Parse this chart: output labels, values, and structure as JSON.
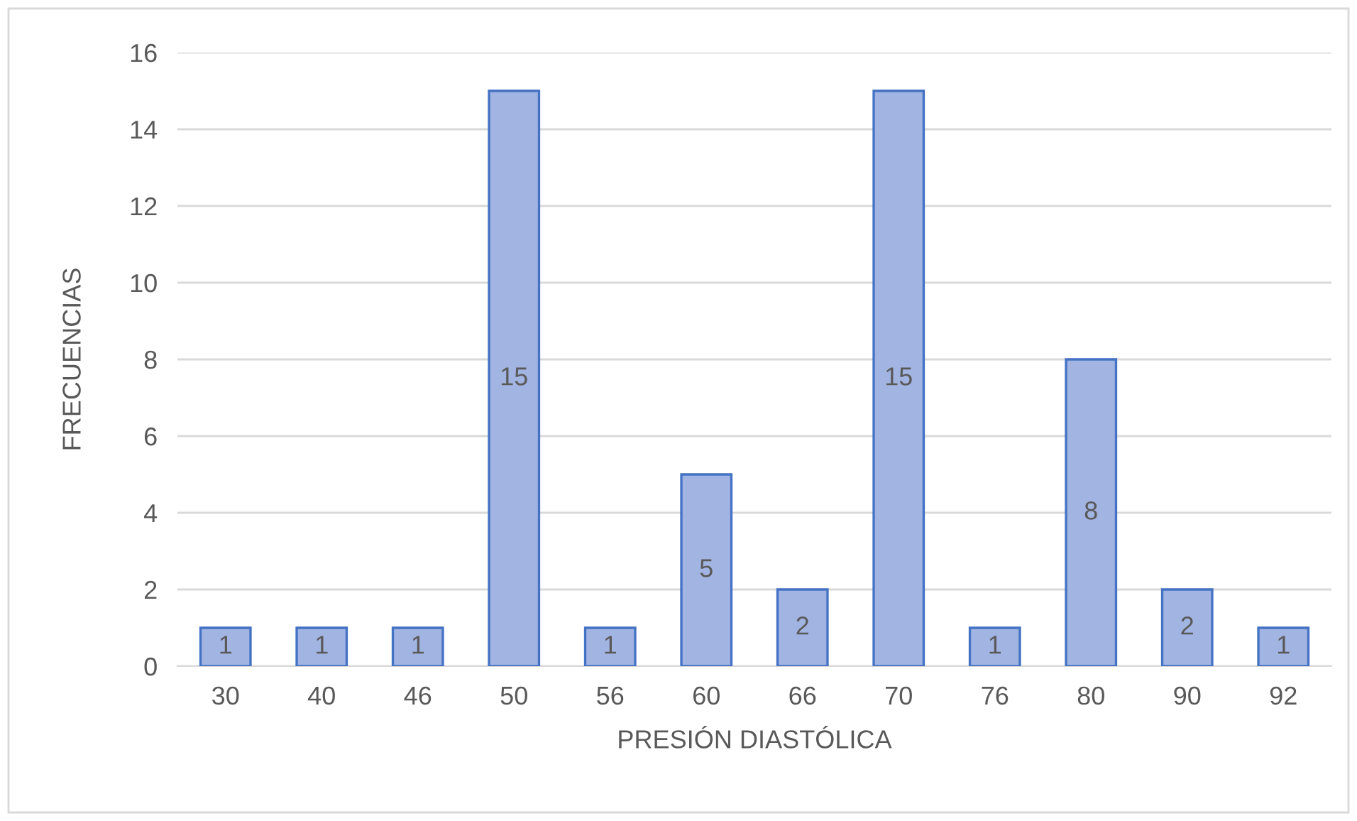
{
  "chart_data": {
    "type": "bar",
    "xlabel": "PRESIÓN DIASTÓLICA",
    "ylabel": "FRECUENCIAS",
    "categories": [
      "30",
      "40",
      "46",
      "50",
      "56",
      "60",
      "66",
      "70",
      "76",
      "80",
      "90",
      "92"
    ],
    "values": [
      1,
      1,
      1,
      15,
      1,
      5,
      2,
      15,
      1,
      8,
      2,
      1
    ],
    "color": "#a2b4e2",
    "ylim": [
      0,
      16
    ],
    "yticks": [
      0,
      2,
      4,
      6,
      8,
      10,
      12,
      14,
      16
    ],
    "grid": "y",
    "data_labels": true,
    "legend": false
  }
}
